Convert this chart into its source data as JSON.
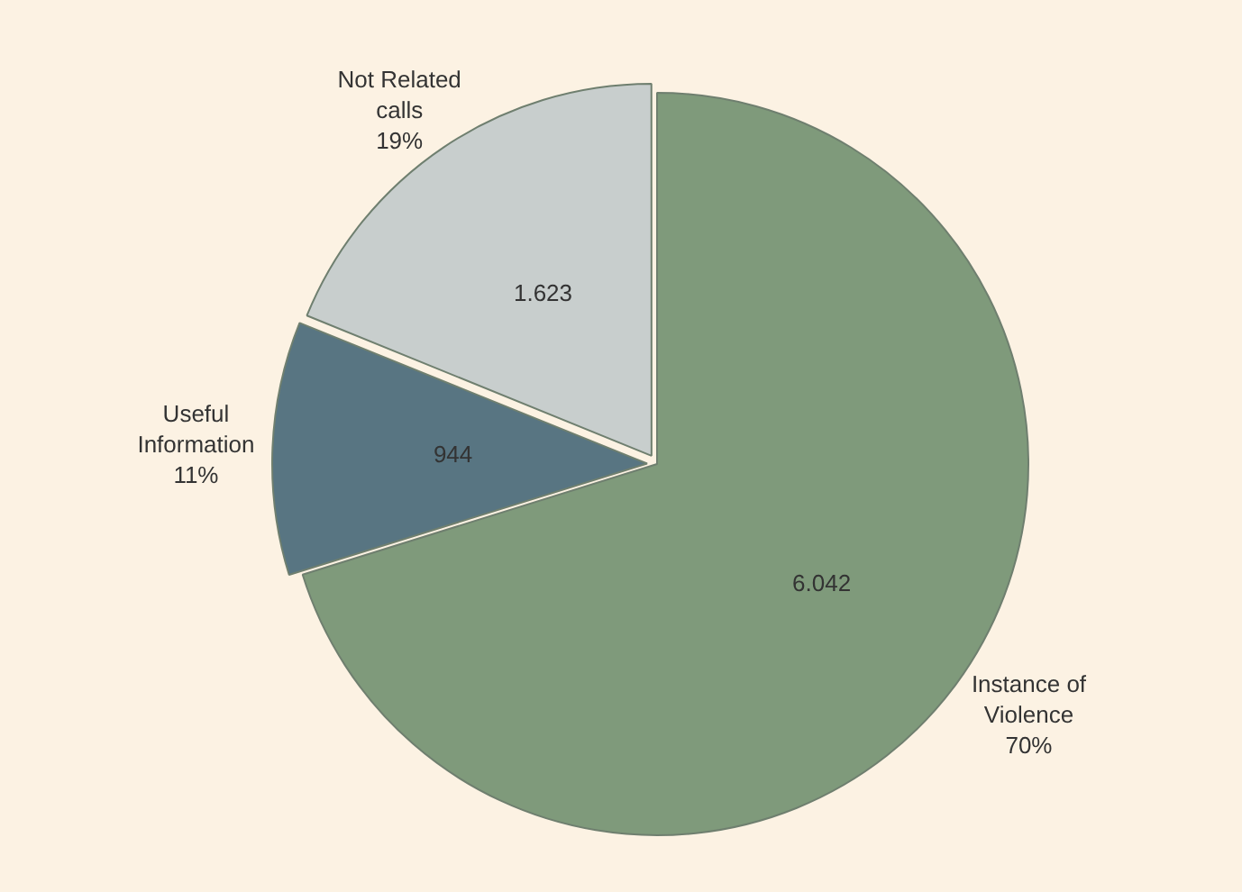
{
  "chart_data": {
    "type": "pie",
    "categories": [
      "Instance of Violence",
      "Useful Information",
      "Not Related calls"
    ],
    "values": [
      6042,
      944,
      1623
    ],
    "value_labels": [
      "6.042",
      "944",
      "1.623"
    ],
    "colors": [
      "#7f9a7b",
      "#587582",
      "#c8cecd"
    ],
    "annotations": [
      {
        "text": "70%",
        "x": "Instance of Violence"
      },
      {
        "text": "11%",
        "x": "Useful Information"
      },
      {
        "text": "19%",
        "x": "Not Related calls"
      }
    ],
    "legend": false
  }
}
